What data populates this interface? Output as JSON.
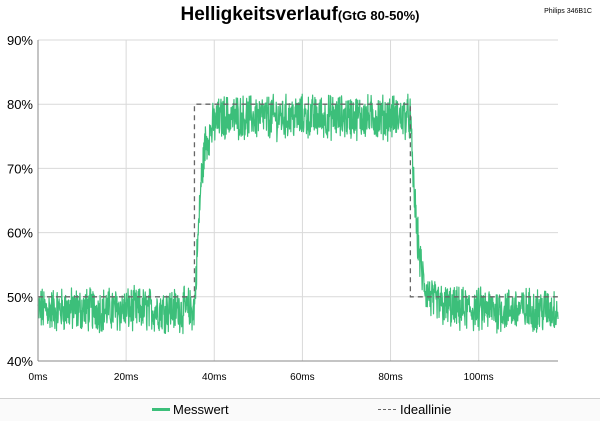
{
  "corner_label": "Philips 346B1C",
  "chart_data": {
    "type": "line",
    "title": "Helligkeitsverlauf",
    "subtitle": "(GtG 80-50%)",
    "xlabel": "",
    "ylabel": "",
    "x_unit": "ms",
    "xlim": [
      0,
      118
    ],
    "ylim": [
      40,
      90
    ],
    "x_ticks": [
      "0ms",
      "20ms",
      "40ms",
      "60ms",
      "80ms",
      "100ms"
    ],
    "y_ticks": [
      "40%",
      "50%",
      "60%",
      "70%",
      "80%",
      "90%"
    ],
    "grid": true,
    "legend_position": "bottom",
    "series": [
      {
        "name": "Messwert",
        "color": "#3cbf7a",
        "style": "noisy-band",
        "x": [
          0,
          35.5,
          36,
          37,
          38,
          40,
          42,
          50,
          84.5,
          85,
          86,
          87,
          88,
          90,
          95,
          118
        ],
        "y": [
          48,
          48,
          55,
          68,
          74,
          77,
          78,
          78,
          78,
          70,
          60,
          54,
          51,
          49,
          48,
          48
        ],
        "noise_amplitude": 3
      },
      {
        "name": "Ideallinie",
        "color": "#666666",
        "style": "dashed",
        "x": [
          0,
          35.5,
          35.5,
          84.5,
          84.5,
          118
        ],
        "y": [
          50,
          50,
          80,
          80,
          50,
          50
        ]
      }
    ]
  }
}
